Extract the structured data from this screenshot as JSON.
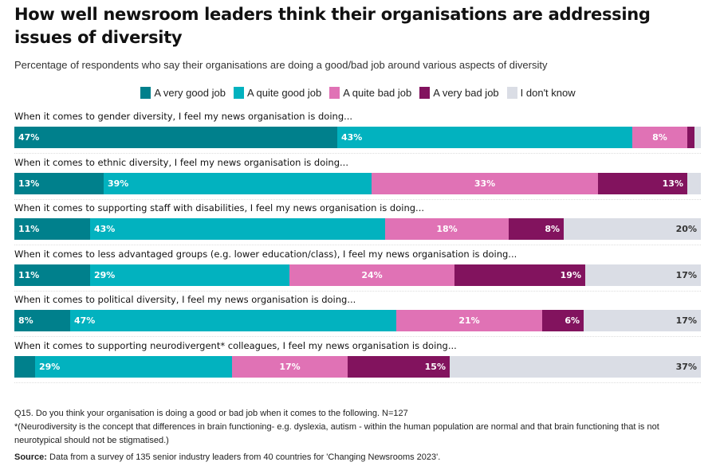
{
  "chart_data": {
    "type": "bar",
    "orientation": "horizontal-stacked-100",
    "title": "How well newsroom leaders think their organisations are addressing issues of diversity",
    "subtitle": "Percentage of respondents who say their organisations are doing a good/bad job around various aspects of diversity",
    "legend_position": "top-center",
    "xlim": [
      0,
      100
    ],
    "categories": [
      "When it comes to gender diversity, I feel my news organisation is doing...",
      "When it comes to ethnic diversity, I feel my news organisation is doing...",
      "When it comes to supporting staff with disabilities, I feel my news organisation is doing...",
      "When it comes to less advantaged groups (e.g. lower education/class), I feel my news organisation is doing...",
      "When it comes to political diversity, I feel my news organisation is doing...",
      "When it comes to supporting neurodivergent* colleagues, I feel my news organisation is doing..."
    ],
    "series": [
      {
        "name": "A very good job",
        "color": "#00808c",
        "values": [
          47,
          13,
          11,
          11,
          8,
          3
        ],
        "labels": [
          "47%",
          "13%",
          "11%",
          "11%",
          "8%",
          ""
        ]
      },
      {
        "name": "A quite good job",
        "color": "#02b2bf",
        "values": [
          43,
          39,
          43,
          29,
          47,
          29
        ],
        "labels": [
          "43%",
          "39%",
          "43%",
          "29%",
          "47%",
          "29%"
        ]
      },
      {
        "name": "A quite bad job",
        "color": "#e072b5",
        "values": [
          8,
          33,
          18,
          24,
          21,
          17
        ],
        "labels": [
          "8%",
          "33%",
          "18%",
          "24%",
          "21%",
          "17%"
        ]
      },
      {
        "name": "A very bad job",
        "color": "#82135e",
        "values": [
          1,
          13,
          8,
          19,
          6,
          15
        ],
        "labels": [
          "",
          "13%",
          "8%",
          "19%",
          "6%",
          "15%"
        ]
      },
      {
        "name": "I don't know",
        "color": "#dadde5",
        "values": [
          1,
          2,
          20,
          17,
          17,
          37
        ],
        "labels": [
          "",
          "",
          "20%",
          "17%",
          "17%",
          "37%"
        ]
      }
    ]
  },
  "footer": {
    "question_code": "Q15",
    "question_text": ". Do you think your organisation is doing a good or bad job when it comes to the following. N=127",
    "footnote": "*(Neurodiversity is the concept that differences in brain functioning- e.g. dyslexia, autism - within the human population are normal and that brain functioning that is not neurotypical should not be stigmatised.)",
    "source_label": "Source:",
    "source_text": " Data from a survey of 135 senior industry leaders from 40 countries for 'Changing Newsrooms 2023'."
  }
}
